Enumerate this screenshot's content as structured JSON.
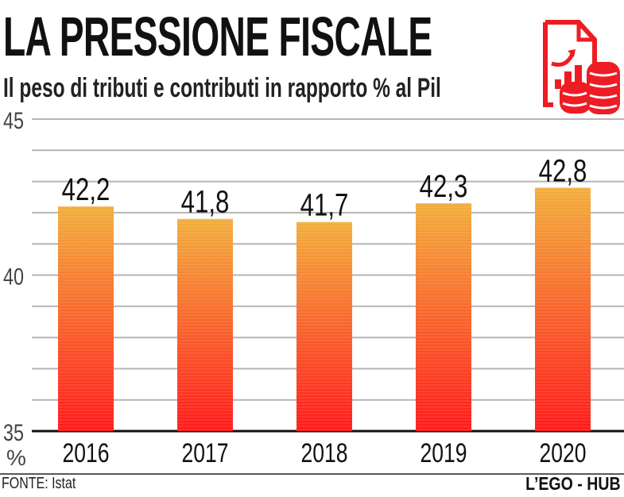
{
  "header": {
    "title": "LA PRESSIONE FISCALE",
    "subtitle": "Il peso di tributi e contributi in rapporto % al Pil"
  },
  "footer": {
    "source": "FONTE: Istat",
    "brand": "L’EGO - HUB"
  },
  "icon": "document-chart-coins-icon",
  "colors": {
    "bar_top": "#f2ae3c",
    "bar_bottom": "#ff1a1a",
    "icon": "#ee1c24"
  },
  "chart_data": {
    "type": "bar",
    "categories": [
      "2016",
      "2017",
      "2018",
      "2019",
      "2020"
    ],
    "values": [
      42.2,
      41.8,
      41.7,
      42.3,
      42.8
    ],
    "data_labels": [
      "42,2",
      "41,8",
      "41,7",
      "42,3",
      "42,8"
    ],
    "ylim": [
      35,
      45
    ],
    "yticks": [
      "35",
      "40",
      "45"
    ],
    "ylabel": "%",
    "grid": true
  }
}
